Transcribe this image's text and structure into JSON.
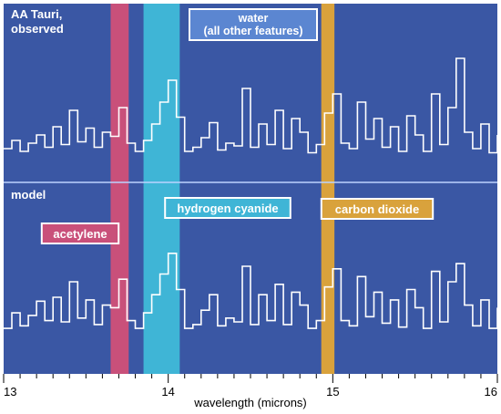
{
  "chart_data": {
    "type": "line",
    "title": "",
    "xlabel": "wavelength (microns)",
    "ylabel": "",
    "xlim": [
      13,
      16
    ],
    "xticks": [
      13,
      14,
      15,
      16
    ],
    "x_tick_labels": [
      "13",
      "14",
      "15",
      "16"
    ],
    "minor_tick_step": 0.1,
    "grid": false,
    "background_color": "#3a57a4",
    "line_color": "#ffffff",
    "panels": [
      {
        "id": "observed",
        "label": "AA Tauri, observed",
        "label_lines": [
          "AA Tauri,",
          "observed"
        ],
        "series_name": "AA Tauri, observed",
        "ylim": [
          0,
          100
        ],
        "x": [
          13.0,
          13.05,
          13.1,
          13.15,
          13.2,
          13.25,
          13.3,
          13.35,
          13.4,
          13.45,
          13.5,
          13.55,
          13.6,
          13.65,
          13.7,
          13.75,
          13.8,
          13.85,
          13.9,
          13.95,
          14.0,
          14.05,
          14.1,
          14.15,
          14.2,
          14.25,
          14.3,
          14.35,
          14.4,
          14.45,
          14.5,
          14.55,
          14.6,
          14.65,
          14.7,
          14.75,
          14.8,
          14.85,
          14.9,
          14.95,
          15.0,
          15.05,
          15.1,
          15.15,
          15.2,
          15.25,
          15.3,
          15.35,
          15.4,
          15.45,
          15.5,
          15.55,
          15.6,
          15.65,
          15.7,
          15.75,
          15.8,
          15.85,
          15.9,
          15.95,
          16.0
        ],
        "y": [
          18,
          24,
          16,
          22,
          28,
          19,
          34,
          21,
          46,
          23,
          33,
          19,
          30,
          27,
          48,
          22,
          16,
          24,
          36,
          52,
          68,
          41,
          16,
          19,
          26,
          37,
          17,
          22,
          20,
          62,
          19,
          36,
          21,
          46,
          18,
          40,
          30,
          15,
          21,
          44,
          58,
          22,
          18,
          52,
          25,
          40,
          19,
          34,
          16,
          42,
          28,
          16,
          58,
          21,
          48,
          84,
          30,
          18,
          36,
          15,
          28
        ]
      },
      {
        "id": "model",
        "label": "model",
        "label_lines": [
          "model"
        ],
        "series_name": "model",
        "ylim": [
          0,
          100
        ],
        "x": [
          13.0,
          13.05,
          13.1,
          13.15,
          13.2,
          13.25,
          13.3,
          13.35,
          13.4,
          13.45,
          13.5,
          13.55,
          13.6,
          13.65,
          13.7,
          13.75,
          13.8,
          13.85,
          13.9,
          13.95,
          14.0,
          14.05,
          14.1,
          14.15,
          14.2,
          14.25,
          14.3,
          14.35,
          14.4,
          14.45,
          14.5,
          14.55,
          14.6,
          14.65,
          14.7,
          14.75,
          14.8,
          14.85,
          14.9,
          14.95,
          15.0,
          15.05,
          15.1,
          15.15,
          15.2,
          15.25,
          15.3,
          15.35,
          15.4,
          15.45,
          15.5,
          15.55,
          15.6,
          15.65,
          15.7,
          15.75,
          15.8,
          15.85,
          15.9,
          15.95,
          16.0
        ],
        "y": [
          14,
          26,
          16,
          24,
          35,
          20,
          38,
          19,
          50,
          22,
          36,
          17,
          32,
          30,
          52,
          20,
          14,
          26,
          40,
          56,
          72,
          44,
          14,
          17,
          28,
          40,
          16,
          22,
          19,
          62,
          17,
          40,
          20,
          48,
          17,
          42,
          32,
          14,
          20,
          46,
          60,
          20,
          16,
          54,
          23,
          42,
          18,
          36,
          15,
          44,
          30,
          14,
          58,
          19,
          50,
          64,
          32,
          16,
          36,
          14,
          30
        ]
      }
    ],
    "bands": [
      {
        "name": "acetylene",
        "label": "acetylene",
        "x_start": 13.65,
        "x_end": 13.76,
        "color": "#c9507a"
      },
      {
        "name": "hydrogen cyanide",
        "label": "hydrogen cyanide",
        "x_start": 13.85,
        "x_end": 14.07,
        "color": "#3fb5d6"
      },
      {
        "name": "carbon dioxide",
        "label": "carbon dioxide",
        "x_start": 14.93,
        "x_end": 15.01,
        "color": "#d9a23c"
      }
    ],
    "annotations": [
      {
        "name": "water",
        "text_lines": [
          "water",
          "(all other features)"
        ],
        "color": "#5b86d1"
      }
    ]
  }
}
